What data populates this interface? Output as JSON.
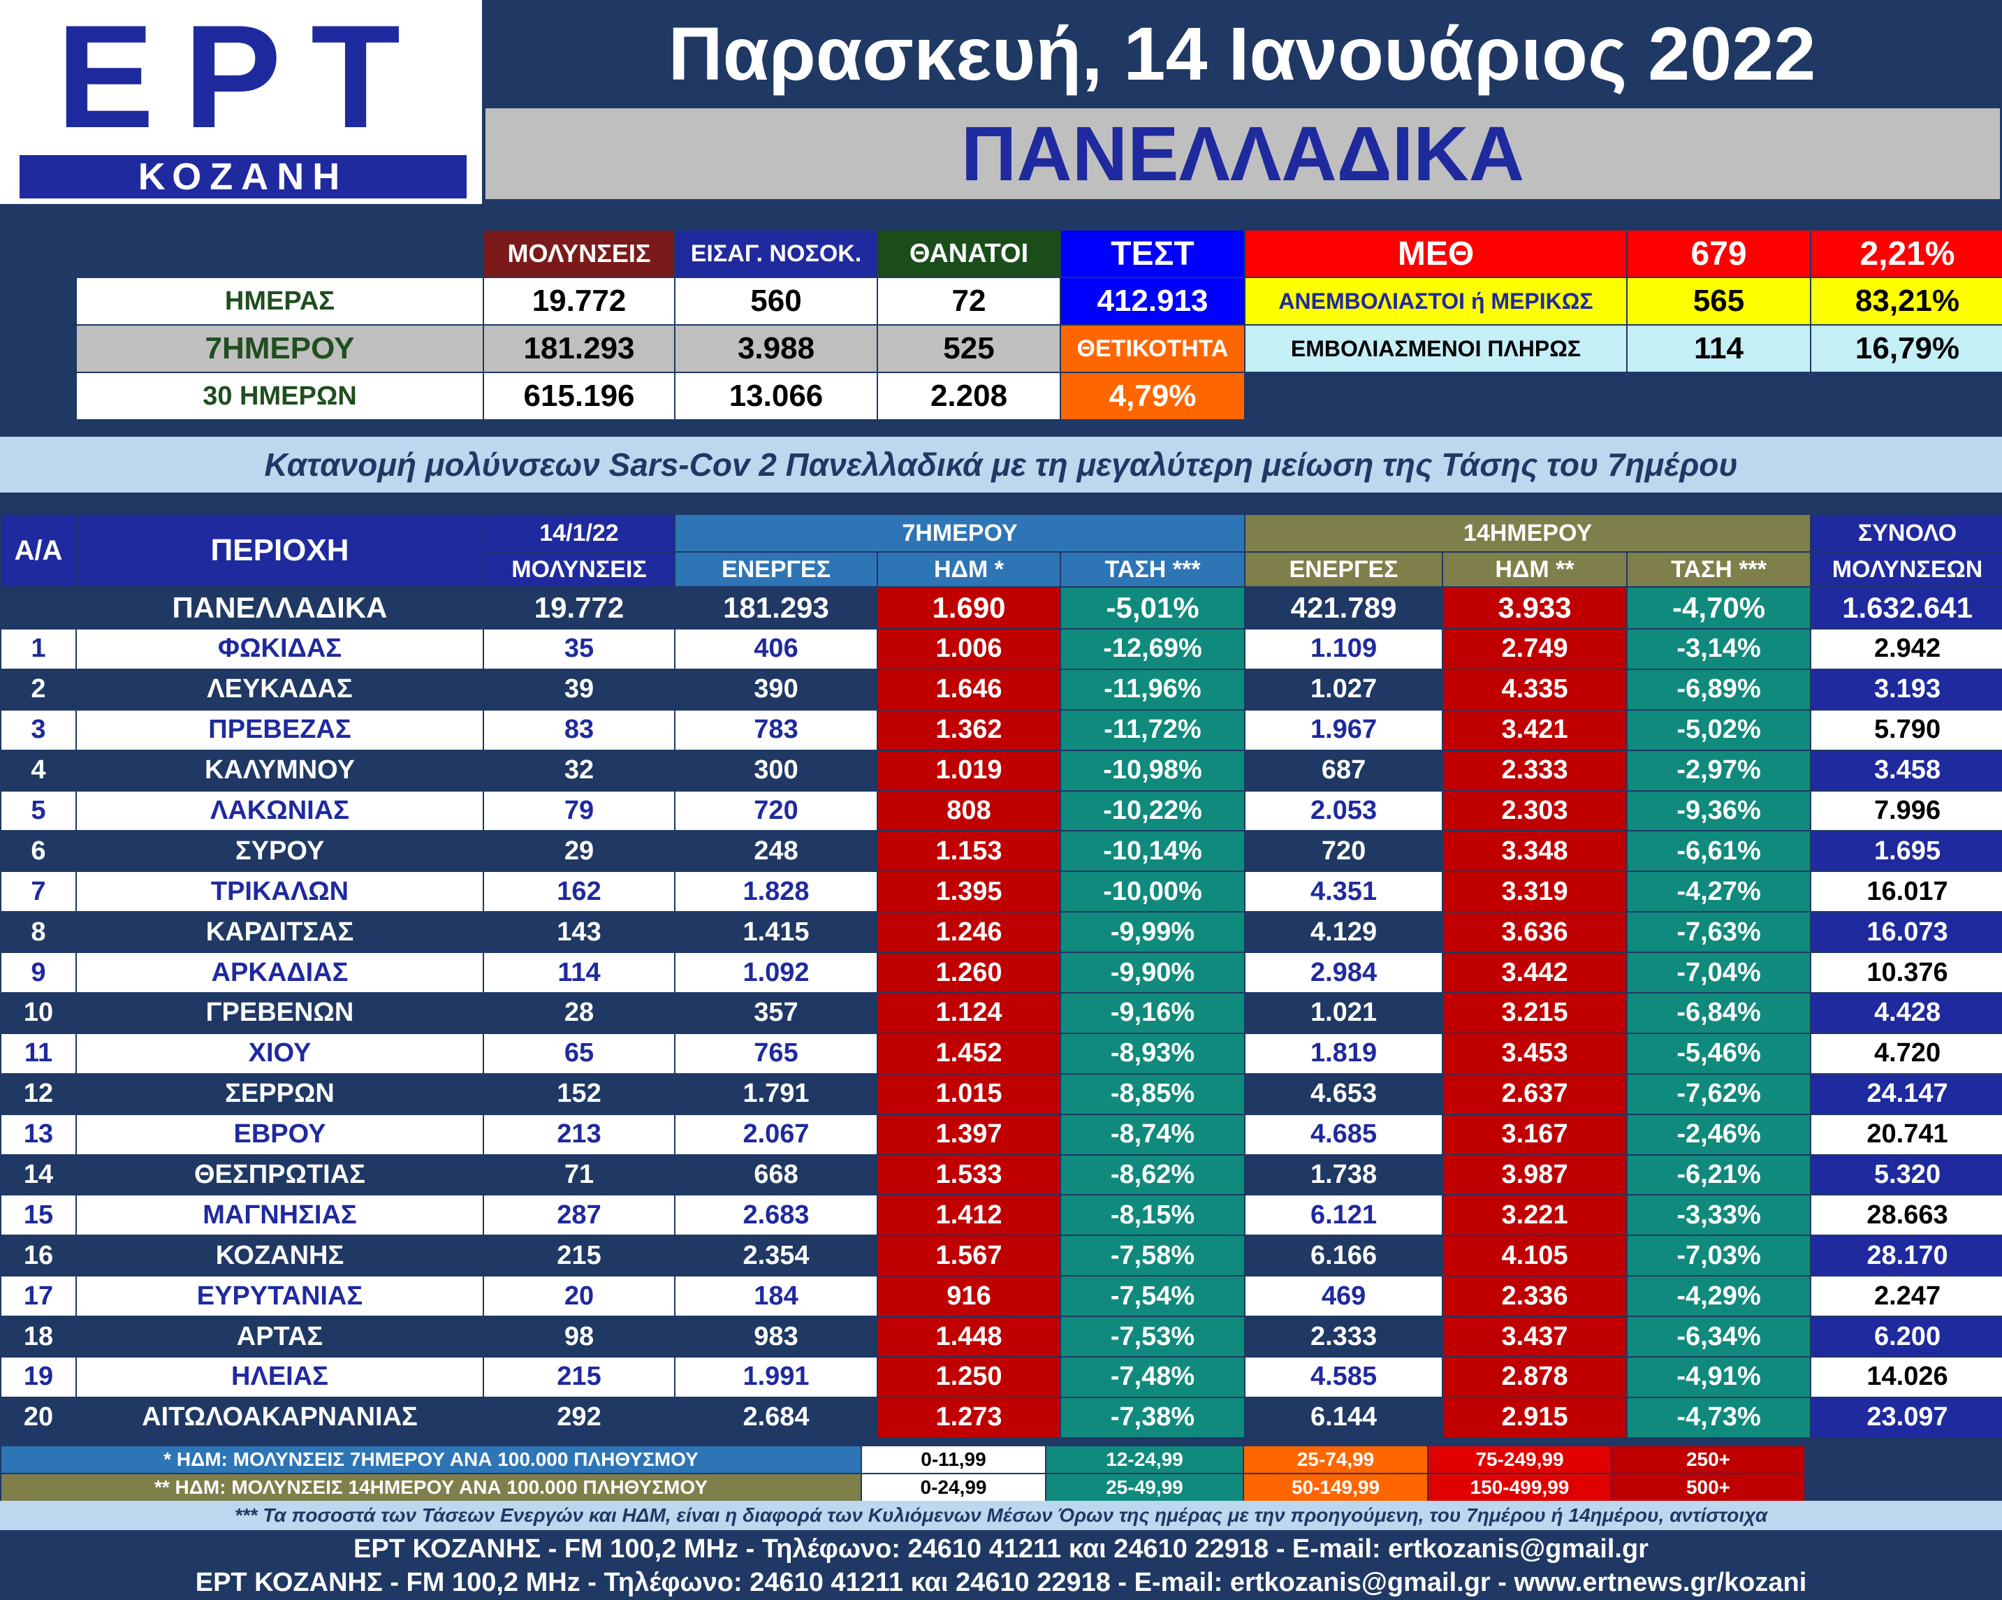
{
  "logo": {
    "brand": "ΕΡΤ",
    "station": "ΚΟΖΑΝΗ"
  },
  "header": {
    "date": "Παρασκευή, 14 Ιανουάριος 2022",
    "banner": "ΠΑΝΕΛΛΑΔΙΚΑ"
  },
  "summary": {
    "headers": {
      "infections": "ΜΟΛΥΝΣΕΙΣ",
      "hospital": "ΕΙΣΑΓ. ΝΟΣΟΚ.",
      "deaths": "ΘΑΝΑΤΟΙ",
      "tests": "ΤΕΣΤ",
      "positivity": "ΘΕΤΙΚΟΤΗΤΑ"
    },
    "rows": [
      {
        "label": "ΗΜΕΡΑΣ",
        "infections": "19.772",
        "hospital": "560",
        "deaths": "72"
      },
      {
        "label": "7ΗΜΕΡΟΥ",
        "infections": "181.293",
        "hospital": "3.988",
        "deaths": "525"
      },
      {
        "label": "30 ΗΜΕΡΩΝ",
        "infections": "615.196",
        "hospital": "13.066",
        "deaths": "2.208"
      }
    ],
    "tests_value": "412.913",
    "positivity_value": "4,79%",
    "icu": {
      "label": "ΜΕΘ",
      "value": "679",
      "pct": "2,21%"
    },
    "unvaccinated": {
      "label": "ΑΝΕΜΒΟΛΙΑΣΤΟΙ ή ΜΕΡΙΚΩΣ",
      "value": "565",
      "pct": "83,21%"
    },
    "vaccinated": {
      "label": "ΕΜΒΟΛΙΑΣΜΕΝΟΙ ΠΛΗΡΩΣ",
      "value": "114",
      "pct": "16,79%"
    }
  },
  "subtitle": "Κατανομή μολύνσεων Sars-Cov 2 Πανελλαδικά με τη μεγαλύτερη μείωση της Τάσης του 7ημέρου",
  "regions_table": {
    "headers": {
      "aa": "Α/Α",
      "area": "ΠΕΡΙΟΧΗ",
      "date": "14/1/22",
      "infections": "ΜΟΛΥΝΣΕΙΣ",
      "week": "7ΗΜΕΡΟΥ",
      "two_weeks": "14ΗΜΕΡΟΥ",
      "total_top": "ΣΥΝΟΛΟ",
      "total_bottom": "ΜΟΛΥΝΣΕΩΝ",
      "active": "ΕΝΕΡΓΕΣ",
      "hdm7": "ΗΔΜ *",
      "trend7": "ΤΑΣΗ ***",
      "hdm14": "ΗΔΜ **",
      "trend14": "ΤΑΣΗ ***"
    },
    "national": {
      "name": "ΠΑΝΕΛΛΑΔΙΚΑ",
      "infections": "19.772",
      "active7": "181.293",
      "hdm7": "1.690",
      "trend7": "-5,01%",
      "active14": "421.789",
      "hdm14": "3.933",
      "trend14": "-4,70%",
      "total": "1.632.641"
    },
    "rows": [
      {
        "n": "1",
        "name": "ΦΩΚΙΔΑΣ",
        "infections": "35",
        "active7": "406",
        "hdm7": "1.006",
        "trend7": "-12,69%",
        "active14": "1.109",
        "hdm14": "2.749",
        "trend14": "-3,14%",
        "total": "2.942"
      },
      {
        "n": "2",
        "name": "ΛΕΥΚΑΔΑΣ",
        "infections": "39",
        "active7": "390",
        "hdm7": "1.646",
        "trend7": "-11,96%",
        "active14": "1.027",
        "hdm14": "4.335",
        "trend14": "-6,89%",
        "total": "3.193"
      },
      {
        "n": "3",
        "name": "ΠΡΕΒΕΖΑΣ",
        "infections": "83",
        "active7": "783",
        "hdm7": "1.362",
        "trend7": "-11,72%",
        "active14": "1.967",
        "hdm14": "3.421",
        "trend14": "-5,02%",
        "total": "5.790"
      },
      {
        "n": "4",
        "name": "ΚΑΛΥΜΝΟΥ",
        "infections": "32",
        "active7": "300",
        "hdm7": "1.019",
        "trend7": "-10,98%",
        "active14": "687",
        "hdm14": "2.333",
        "trend14": "-2,97%",
        "total": "3.458"
      },
      {
        "n": "5",
        "name": "ΛΑΚΩΝΙΑΣ",
        "infections": "79",
        "active7": "720",
        "hdm7": "808",
        "trend7": "-10,22%",
        "active14": "2.053",
        "hdm14": "2.303",
        "trend14": "-9,36%",
        "total": "7.996"
      },
      {
        "n": "6",
        "name": "ΣΥΡΟΥ",
        "infections": "29",
        "active7": "248",
        "hdm7": "1.153",
        "trend7": "-10,14%",
        "active14": "720",
        "hdm14": "3.348",
        "trend14": "-6,61%",
        "total": "1.695"
      },
      {
        "n": "7",
        "name": "ΤΡΙΚΑΛΩΝ",
        "infections": "162",
        "active7": "1.828",
        "hdm7": "1.395",
        "trend7": "-10,00%",
        "active14": "4.351",
        "hdm14": "3.319",
        "trend14": "-4,27%",
        "total": "16.017"
      },
      {
        "n": "8",
        "name": "ΚΑΡΔΙΤΣΑΣ",
        "infections": "143",
        "active7": "1.415",
        "hdm7": "1.246",
        "trend7": "-9,99%",
        "active14": "4.129",
        "hdm14": "3.636",
        "trend14": "-7,63%",
        "total": "16.073"
      },
      {
        "n": "9",
        "name": "ΑΡΚΑΔΙΑΣ",
        "infections": "114",
        "active7": "1.092",
        "hdm7": "1.260",
        "trend7": "-9,90%",
        "active14": "2.984",
        "hdm14": "3.442",
        "trend14": "-7,04%",
        "total": "10.376"
      },
      {
        "n": "10",
        "name": "ΓΡΕΒΕΝΩΝ",
        "infections": "28",
        "active7": "357",
        "hdm7": "1.124",
        "trend7": "-9,16%",
        "active14": "1.021",
        "hdm14": "3.215",
        "trend14": "-6,84%",
        "total": "4.428"
      },
      {
        "n": "11",
        "name": "ΧΙΟΥ",
        "infections": "65",
        "active7": "765",
        "hdm7": "1.452",
        "trend7": "-8,93%",
        "active14": "1.819",
        "hdm14": "3.453",
        "trend14": "-5,46%",
        "total": "4.720"
      },
      {
        "n": "12",
        "name": "ΣΕΡΡΩΝ",
        "infections": "152",
        "active7": "1.791",
        "hdm7": "1.015",
        "trend7": "-8,85%",
        "active14": "4.653",
        "hdm14": "2.637",
        "trend14": "-7,62%",
        "total": "24.147"
      },
      {
        "n": "13",
        "name": "ΕΒΡΟΥ",
        "infections": "213",
        "active7": "2.067",
        "hdm7": "1.397",
        "trend7": "-8,74%",
        "active14": "4.685",
        "hdm14": "3.167",
        "trend14": "-2,46%",
        "total": "20.741"
      },
      {
        "n": "14",
        "name": "ΘΕΣΠΡΩΤΙΑΣ",
        "infections": "71",
        "active7": "668",
        "hdm7": "1.533",
        "trend7": "-8,62%",
        "active14": "1.738",
        "hdm14": "3.987",
        "trend14": "-6,21%",
        "total": "5.320"
      },
      {
        "n": "15",
        "name": "ΜΑΓΝΗΣΙΑΣ",
        "infections": "287",
        "active7": "2.683",
        "hdm7": "1.412",
        "trend7": "-8,15%",
        "active14": "6.121",
        "hdm14": "3.221",
        "trend14": "-3,33%",
        "total": "28.663"
      },
      {
        "n": "16",
        "name": "ΚΟΖΑΝΗΣ",
        "infections": "215",
        "active7": "2.354",
        "hdm7": "1.567",
        "trend7": "-7,58%",
        "active14": "6.166",
        "hdm14": "4.105",
        "trend14": "-7,03%",
        "total": "28.170"
      },
      {
        "n": "17",
        "name": "ΕΥΡΥΤΑΝΙΑΣ",
        "infections": "20",
        "active7": "184",
        "hdm7": "916",
        "trend7": "-7,54%",
        "active14": "469",
        "hdm14": "2.336",
        "trend14": "-4,29%",
        "total": "2.247"
      },
      {
        "n": "18",
        "name": "ΑΡΤΑΣ",
        "infections": "98",
        "active7": "983",
        "hdm7": "1.448",
        "trend7": "-7,53%",
        "active14": "2.333",
        "hdm14": "3.437",
        "trend14": "-6,34%",
        "total": "6.200"
      },
      {
        "n": "19",
        "name": "ΗΛΕΙΑΣ",
        "infections": "215",
        "active7": "1.991",
        "hdm7": "1.250",
        "trend7": "-7,48%",
        "active14": "4.585",
        "hdm14": "2.878",
        "trend14": "-4,91%",
        "total": "14.026"
      },
      {
        "n": "20",
        "name": "ΑΙΤΩΛΟΑΚΑΡΝΑΝΙΑΣ",
        "infections": "292",
        "active7": "2.684",
        "hdm7": "1.273",
        "trend7": "-7,38%",
        "active14": "6.144",
        "hdm14": "2.915",
        "trend14": "-4,73%",
        "total": "23.097"
      }
    ]
  },
  "legend": {
    "hdm7": {
      "label": "* ΗΔΜ: ΜΟΛΥΝΣΕΙΣ 7ΗΜΕΡΟΥ ΑΝΑ 100.000 ΠΛΗΘΥΣΜΟΥ",
      "ranges": [
        "0-11,99",
        "12-24,99",
        "25-74,99",
        "75-249,99",
        "250+"
      ]
    },
    "hdm14": {
      "label": "** ΗΔΜ: ΜΟΛΥΝΣΕΙΣ 14ΗΜΕΡΟΥ ΑΝΑ 100.000 ΠΛΗΘΥΣΜΟΥ",
      "ranges": [
        "0-24,99",
        "25-49,99",
        "50-149,99",
        "150-499,99",
        "500+"
      ]
    }
  },
  "footer": {
    "note": "*** Τα ποσοστά των Τάσεων Ενεργών και ΗΔΜ, είναι η διαφορά των Κυλιόμενων Μέσων Όρων της ημέρας με την προηγούμενη, του 7ημέρου ή 14ημέρου, αντίστοιχα",
    "line1": "ΕΡΤ ΚΟΖΑΝΗΣ - FM 100,2 MHz - Τηλέφωνο:  24610 41211 και 24610 22918 - E-mail: ertkozanis@gmail.gr",
    "line2": "ΕΡΤ ΚΟΖΑΝΗΣ - FM 100,2 MHz - Τηλέφωνο:  24610 41211 και 24610 22918 - E-mail: ertkozanis@gmail.gr - www.ertnews.gr/kozani"
  },
  "colors": {
    "navy": "#1f3864",
    "brand_blue": "#1f2a9e",
    "red": "#c00000",
    "teal": "#108a7c",
    "orange": "#ff6600",
    "yellow": "#ffff00",
    "light_blue": "#bdd7ee"
  }
}
